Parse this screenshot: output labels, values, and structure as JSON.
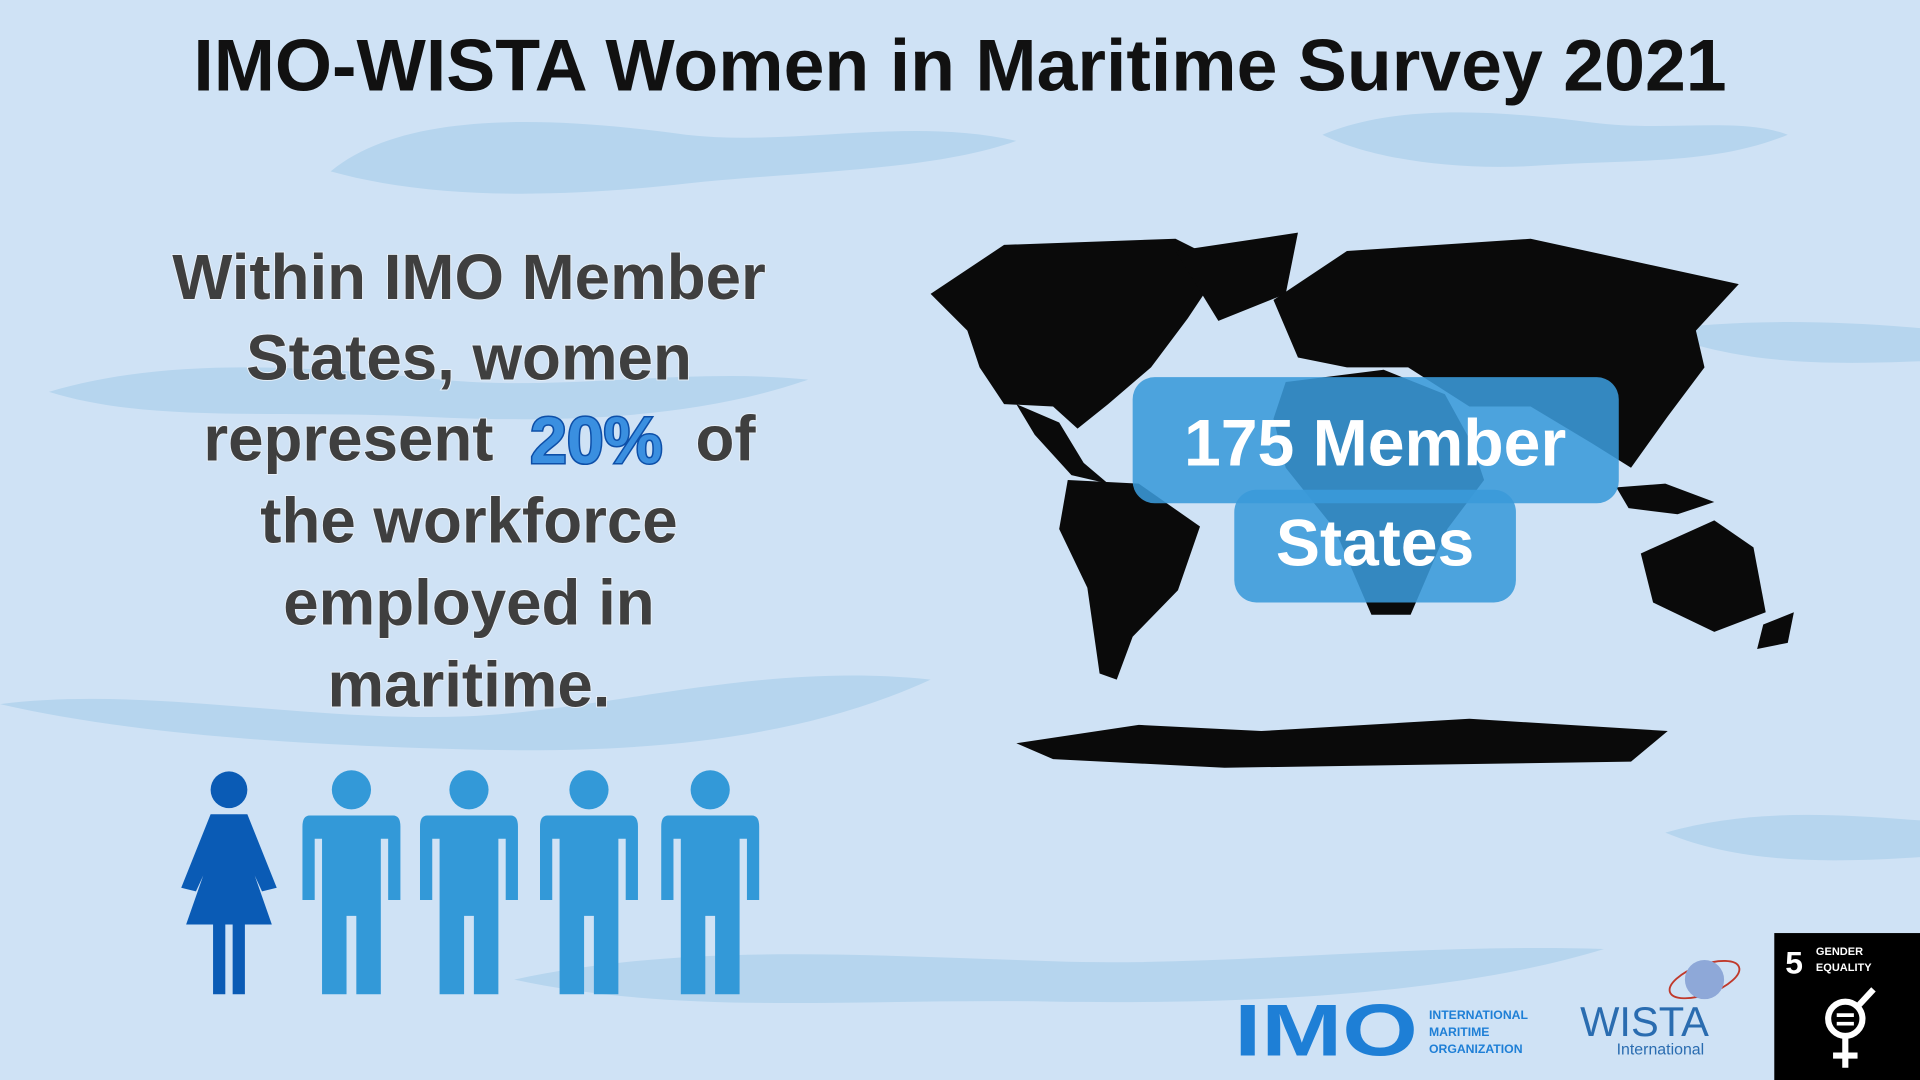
{
  "title": "IMO-WISTA Women in Maritime Survey 2021",
  "statement": {
    "lines": [
      "Within IMO Member",
      "States, women",
      "represent",
      "20%",
      "of",
      "the workforce",
      "employed in",
      "maritime."
    ]
  },
  "map_label": {
    "lines": [
      "175 Member",
      "States"
    ]
  },
  "logos": {
    "imo": {
      "mark": "IMO",
      "lines": [
        "INTERNATIONAL",
        "MARITIME",
        "ORGANIZATION"
      ]
    },
    "wista": {
      "name": "WISTA",
      "sub": "International"
    },
    "sdg": {
      "number": "5",
      "lines": [
        "GENDER",
        "EQUALITY"
      ]
    }
  }
}
